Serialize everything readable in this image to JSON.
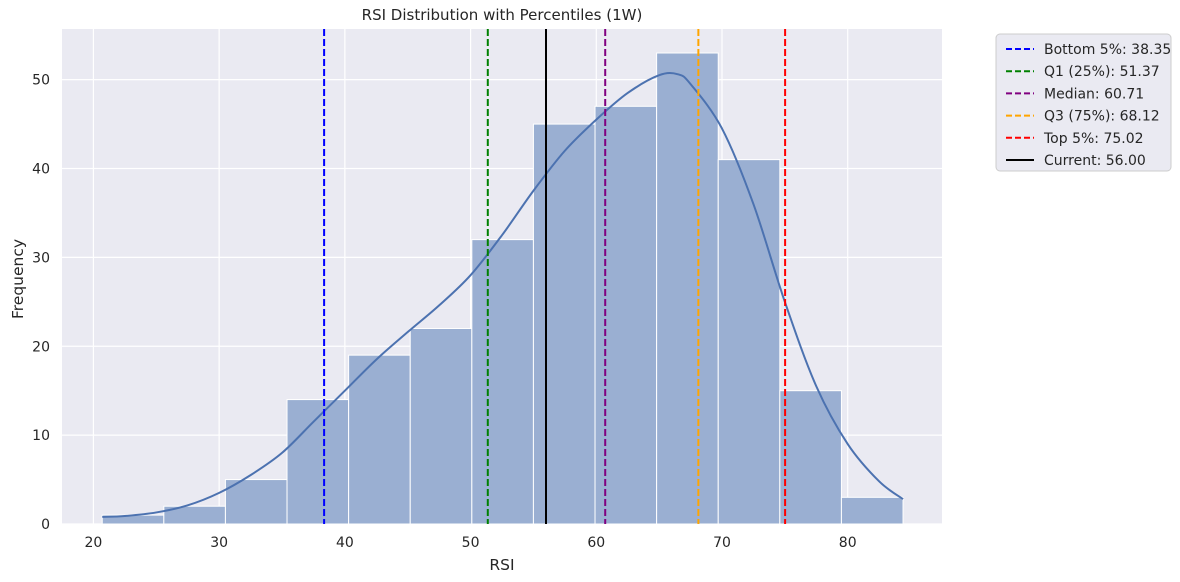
{
  "chart_data": {
    "type": "bar",
    "title": "RSI Distribution with Percentiles (1W)",
    "xlabel": "RSI",
    "ylabel": "Frequency",
    "xlim": [
      17.5,
      87.5
    ],
    "ylim": [
      0,
      55.7
    ],
    "xticks": [
      20,
      30,
      40,
      50,
      60,
      70,
      80
    ],
    "yticks": [
      0,
      10,
      20,
      30,
      40,
      50
    ],
    "grid": true,
    "bins": [
      {
        "x0": 20.7,
        "x1": 25.6,
        "count": 1
      },
      {
        "x0": 25.6,
        "x1": 30.5,
        "count": 2
      },
      {
        "x0": 30.5,
        "x1": 35.4,
        "count": 5
      },
      {
        "x0": 35.4,
        "x1": 40.3,
        "count": 14
      },
      {
        "x0": 40.3,
        "x1": 45.2,
        "count": 19
      },
      {
        "x0": 45.2,
        "x1": 50.1,
        "count": 22
      },
      {
        "x0": 50.1,
        "x1": 55.0,
        "count": 32
      },
      {
        "x0": 55.0,
        "x1": 59.9,
        "count": 45
      },
      {
        "x0": 59.9,
        "x1": 64.8,
        "count": 47
      },
      {
        "x0": 64.8,
        "x1": 69.7,
        "count": 53
      },
      {
        "x0": 69.7,
        "x1": 74.6,
        "count": 41
      },
      {
        "x0": 74.6,
        "x1": 79.5,
        "count": 15
      },
      {
        "x0": 79.5,
        "x1": 84.4,
        "count": 3
      }
    ],
    "bar_color": "#9aafd2",
    "kde": {
      "name": "",
      "color": "#4c72b0",
      "points": [
        [
          20.7,
          0.8
        ],
        [
          22.5,
          0.9
        ],
        [
          25,
          1.3
        ],
        [
          27.5,
          2.1
        ],
        [
          30,
          3.5
        ],
        [
          32.5,
          5.5
        ],
        [
          35,
          8.0
        ],
        [
          37.5,
          11.5
        ],
        [
          40,
          15.0
        ],
        [
          42.5,
          18.5
        ],
        [
          45,
          21.6
        ],
        [
          47.5,
          24.6
        ],
        [
          50,
          28.0
        ],
        [
          52.5,
          32.5
        ],
        [
          55,
          37.5
        ],
        [
          57.5,
          42.0
        ],
        [
          60,
          45.5
        ],
        [
          62.5,
          48.5
        ],
        [
          65,
          50.5
        ],
        [
          66.5,
          50.6
        ],
        [
          67.5,
          49.5
        ],
        [
          70,
          44.5
        ],
        [
          72.5,
          36.0
        ],
        [
          75,
          25.0
        ],
        [
          77.5,
          15.5
        ],
        [
          80,
          9.0
        ],
        [
          82.5,
          4.8
        ],
        [
          84.4,
          2.8
        ]
      ]
    },
    "vlines": [
      {
        "label": "Bottom 5%: 38.35",
        "x": 38.35,
        "color": "#0000ff",
        "dashed": true
      },
      {
        "label": "Q1 (25%): 51.37",
        "x": 51.37,
        "color": "#008000",
        "dashed": true
      },
      {
        "label": "Median: 60.71",
        "x": 60.71,
        "color": "#800080",
        "dashed": true
      },
      {
        "label": "Q3 (75%): 68.12",
        "x": 68.12,
        "color": "#ffa500",
        "dashed": true
      },
      {
        "label": "Top 5%: 75.02",
        "x": 75.02,
        "color": "#ff0000",
        "dashed": true
      },
      {
        "label": "Current: 56.00",
        "x": 56.0,
        "color": "#000000",
        "dashed": false
      }
    ],
    "legend_placement": "outside-top-right",
    "plot_background": "#eaeaf2",
    "grid_color": "#ffffff"
  }
}
